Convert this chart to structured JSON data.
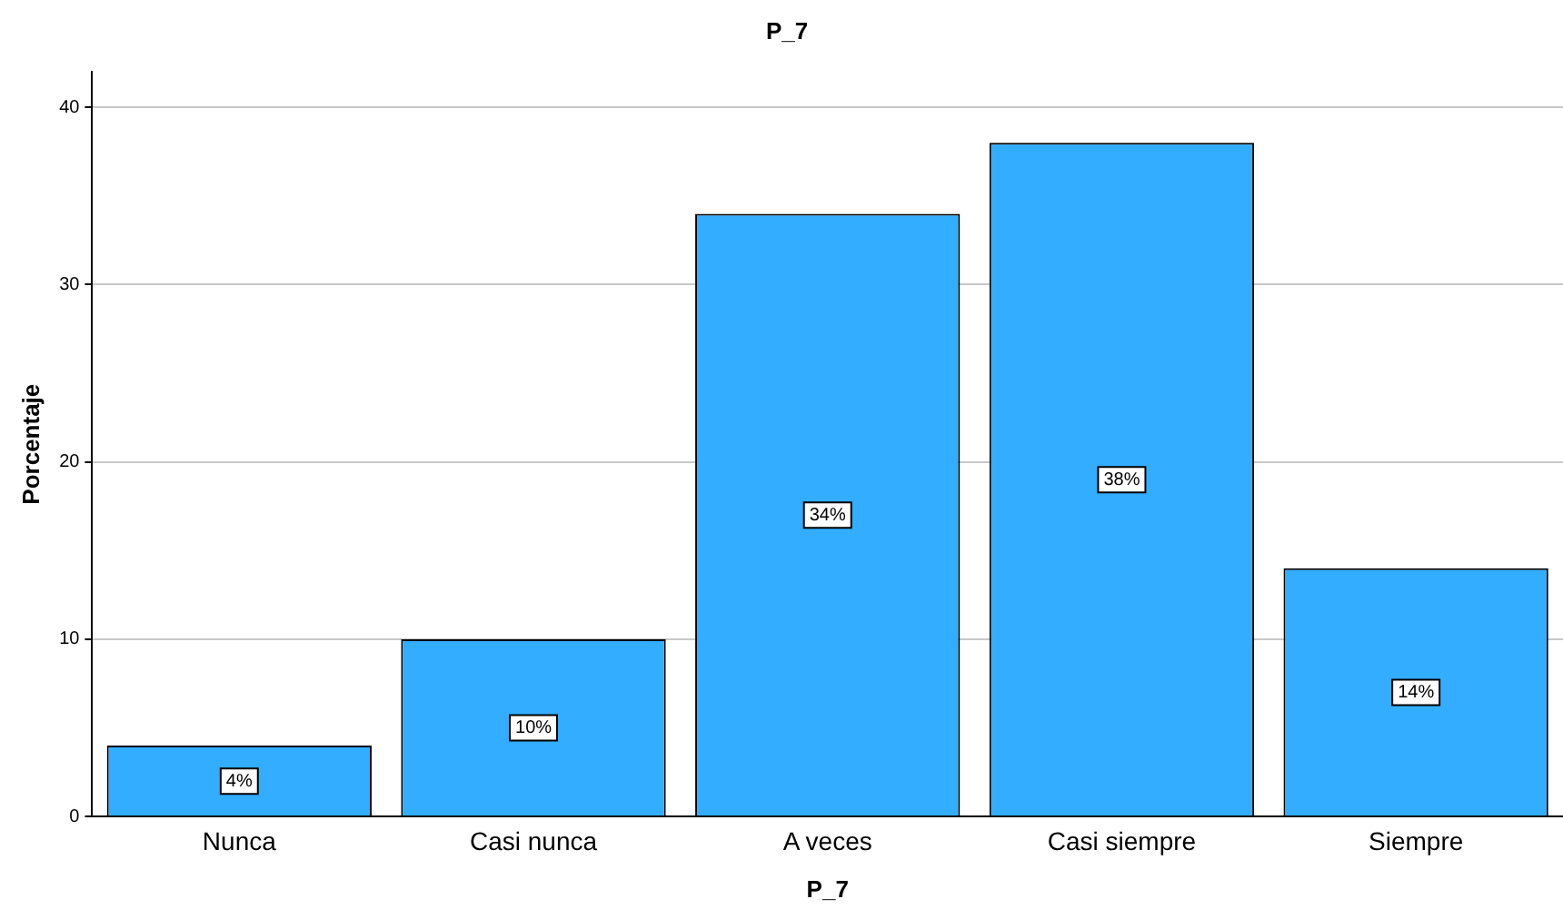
{
  "chart_data": {
    "type": "bar",
    "title": "P_7",
    "xlabel": "P_7",
    "ylabel": "Porcentaje",
    "categories": [
      "Nunca",
      "Casi nunca",
      "A veces",
      "Casi siempre",
      "Siempre"
    ],
    "values": [
      4,
      10,
      34,
      38,
      14
    ],
    "color": "#33adff",
    "value_labels": [
      "4%",
      "10%",
      "34%",
      "38%",
      "14%"
    ],
    "ylim": [
      0,
      42
    ],
    "yticks": [
      0,
      10,
      20,
      30,
      40
    ],
    "grid": "y",
    "legend": false
  }
}
